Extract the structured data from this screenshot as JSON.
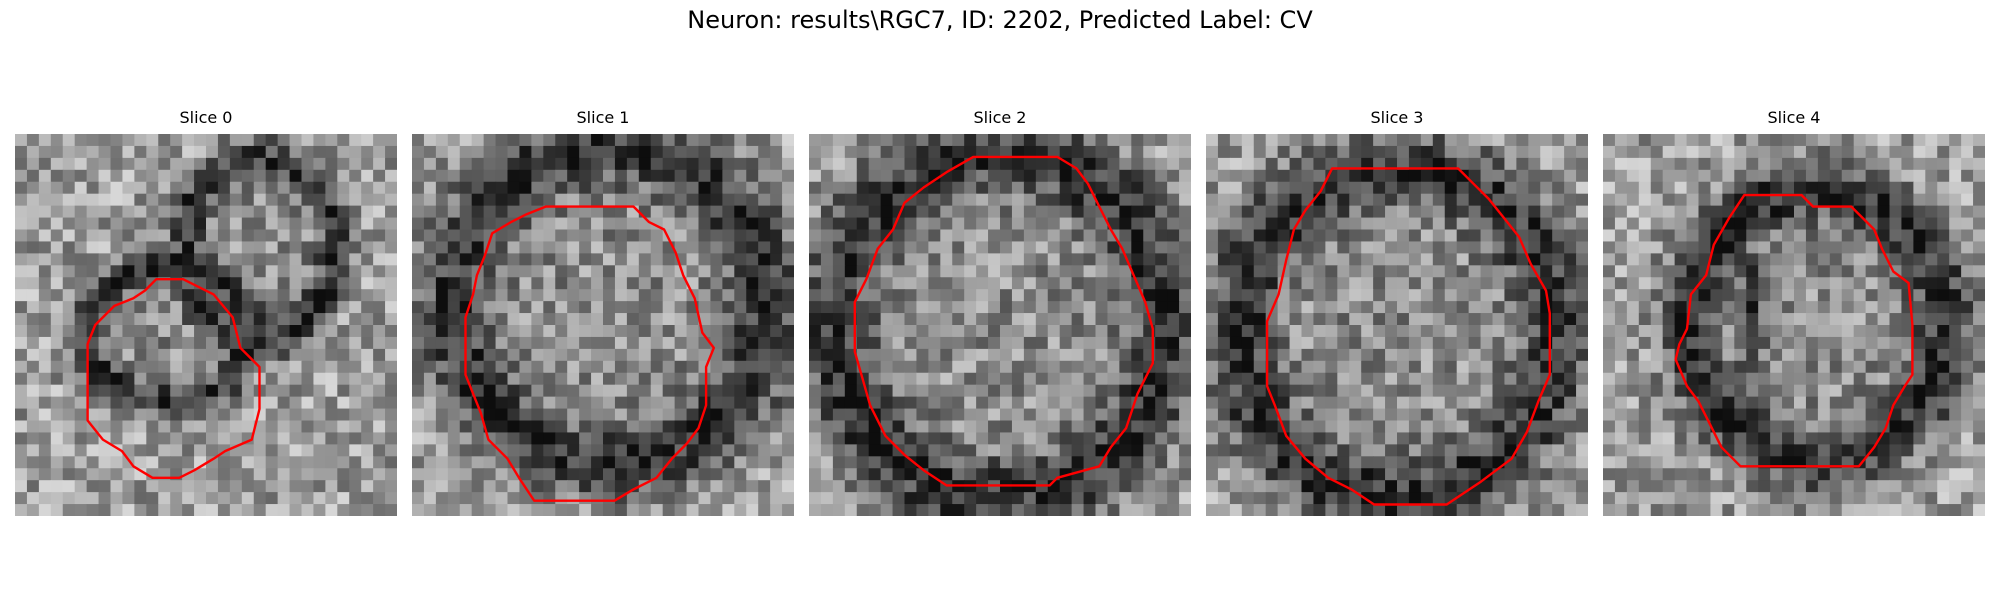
{
  "figure": {
    "title": "Neuron: results\\RGC7, ID: 2202, Predicted Label: CV",
    "contour_color": "#ff0000"
  },
  "slices": [
    {
      "label": "Slice 0"
    },
    {
      "label": "Slice 1"
    },
    {
      "label": "Slice 2"
    },
    {
      "label": "Slice 3"
    },
    {
      "label": "Slice 4"
    }
  ]
}
